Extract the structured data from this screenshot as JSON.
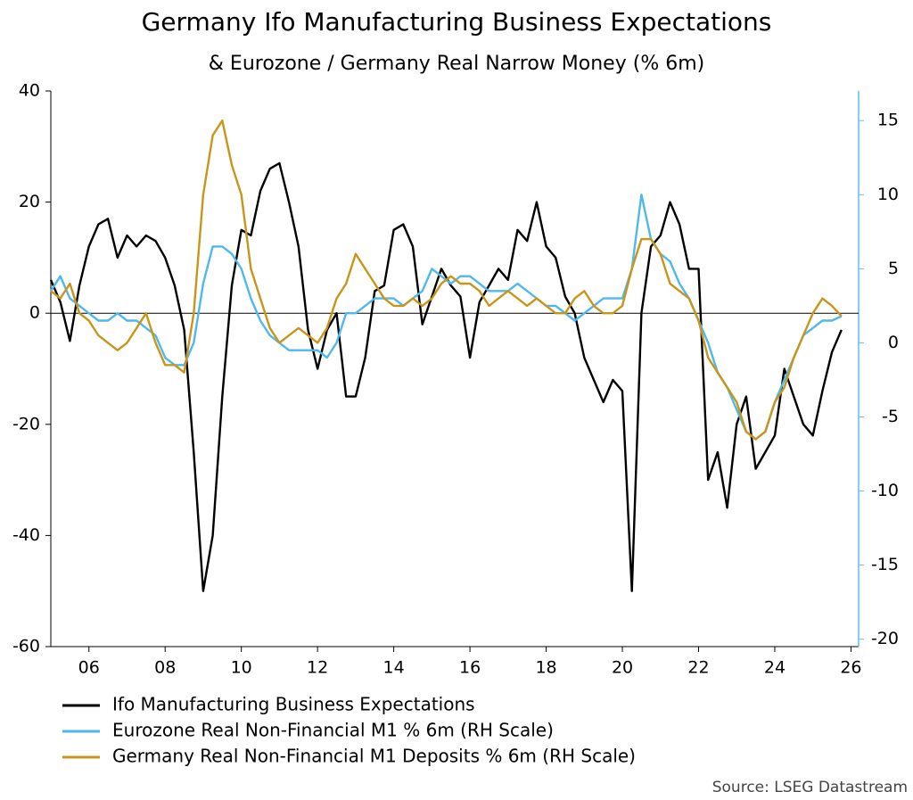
{
  "chart_data": {
    "type": "line",
    "title": "Germany Ifo Manufacturing Business Expectations",
    "subtitle": "& Eurozone / Germany Real Narrow Money (% 6m)",
    "source": "Source: LSEG Datastream",
    "x": [
      2005,
      2005.25,
      2005.5,
      2005.75,
      2006,
      2006.25,
      2006.5,
      2006.75,
      2007,
      2007.25,
      2007.5,
      2007.75,
      2008,
      2008.25,
      2008.5,
      2008.75,
      2009,
      2009.25,
      2009.5,
      2009.75,
      2010,
      2010.25,
      2010.5,
      2010.75,
      2011,
      2011.25,
      2011.5,
      2011.75,
      2012,
      2012.25,
      2012.5,
      2012.75,
      2013,
      2013.25,
      2013.5,
      2013.75,
      2014,
      2014.25,
      2014.5,
      2014.75,
      2015,
      2015.25,
      2015.5,
      2015.75,
      2016,
      2016.25,
      2016.5,
      2016.75,
      2017,
      2017.25,
      2017.5,
      2017.75,
      2018,
      2018.25,
      2018.5,
      2018.75,
      2019,
      2019.25,
      2019.5,
      2019.75,
      2020,
      2020.25,
      2020.5,
      2020.75,
      2021,
      2021.25,
      2021.5,
      2021.75,
      2022,
      2022.25,
      2022.5,
      2022.75,
      2023,
      2023.25,
      2023.5,
      2023.75,
      2024,
      2024.25,
      2024.5,
      2024.75,
      2025,
      2025.25,
      2025.5,
      2025.75
    ],
    "xlim": [
      2005,
      2026.2
    ],
    "xticks": [
      {
        "value": 2006,
        "label": "06"
      },
      {
        "value": 2008,
        "label": "08"
      },
      {
        "value": 2010,
        "label": "10"
      },
      {
        "value": 2012,
        "label": "12"
      },
      {
        "value": 2014,
        "label": "14"
      },
      {
        "value": 2016,
        "label": "16"
      },
      {
        "value": 2018,
        "label": "18"
      },
      {
        "value": 2020,
        "label": "20"
      },
      {
        "value": 2022,
        "label": "22"
      },
      {
        "value": 2024,
        "label": "24"
      },
      {
        "value": 2026,
        "label": "26"
      }
    ],
    "ylim": [
      -60,
      40
    ],
    "yticks": [
      -60,
      -40,
      -20,
      0,
      20,
      40
    ],
    "y2lim": [
      -20.5,
      17
    ],
    "y2ticks": [
      -20,
      -15,
      -10,
      -5,
      0,
      5,
      10,
      15
    ],
    "y2_axis_color": "#5bc0f0",
    "hline": 0,
    "series": [
      {
        "name": "Ifo Manufacturing Business Expectations",
        "color": "#000000",
        "values": [
          6,
          2,
          -5,
          5,
          12,
          16,
          17,
          10,
          14,
          12,
          14,
          13,
          10,
          5,
          -3,
          -25,
          -50,
          -40,
          -15,
          5,
          15,
          14,
          22,
          26,
          27,
          20,
          12,
          -3,
          -10,
          -3,
          0,
          -15,
          -15,
          -8,
          4,
          5,
          15,
          16,
          12,
          -2,
          3,
          8,
          5,
          3,
          -8,
          2,
          5,
          8,
          6,
          15,
          13,
          20,
          12,
          10,
          3,
          0,
          -8,
          -12,
          -16,
          -12,
          -14,
          -50,
          0,
          12,
          14,
          20,
          16,
          8,
          8,
          -30,
          -25,
          -35,
          -20,
          -15,
          -28,
          -25,
          -22,
          -10,
          -15,
          -20,
          -22,
          -14,
          -7,
          -3
        ]
      },
      {
        "name": "Eurozone Real Non-Financial M1 % 6m (RH Scale)",
        "color": "#4fb8ee",
        "axis": "y2",
        "values": [
          3.5,
          4.5,
          3,
          2.5,
          2,
          1.5,
          1.5,
          2,
          1.5,
          1.5,
          1,
          0.5,
          -1,
          -1.5,
          -1.5,
          0,
          4,
          6.5,
          6.5,
          6,
          5,
          3,
          1.5,
          0.5,
          0,
          -0.5,
          -0.5,
          -0.5,
          -0.5,
          -1,
          0,
          2,
          2,
          2.5,
          3,
          3,
          3,
          2.5,
          3,
          3.5,
          5,
          4.5,
          4,
          4.5,
          4.5,
          4,
          3.5,
          3.5,
          3.5,
          4,
          3.5,
          3,
          2.5,
          2.5,
          2,
          1.5,
          2,
          2.5,
          3,
          3,
          3,
          5,
          10,
          7,
          6,
          5.5,
          4,
          3,
          1.5,
          0,
          -2,
          -3,
          -4.5,
          -6,
          -6.5,
          -6,
          -4,
          -2.5,
          -1,
          0.5,
          1,
          1.5,
          1.5,
          1.8
        ]
      },
      {
        "name": "Germany Real Non-Financial M1 Deposits % 6m (RH Scale)",
        "color": "#c8951a",
        "axis": "y2",
        "values": [
          3.5,
          3,
          4,
          2,
          1.5,
          0.5,
          0,
          -0.5,
          0,
          1,
          2,
          0,
          -1.5,
          -1.5,
          -2,
          2,
          10,
          14,
          15,
          12,
          10,
          5,
          3,
          1,
          0,
          0.5,
          1,
          0.5,
          0,
          1,
          3,
          4,
          6,
          5,
          4,
          3,
          2.5,
          2.5,
          3,
          2.5,
          3,
          4,
          4.5,
          4,
          4,
          3.5,
          2.5,
          3,
          3.5,
          3,
          2.5,
          3,
          2.5,
          2,
          2,
          3,
          3.5,
          2.5,
          2,
          2,
          2.5,
          5,
          7,
          7,
          6,
          4,
          3.5,
          3,
          1.5,
          -1,
          -2,
          -3,
          -4,
          -6,
          -6.5,
          -6,
          -4,
          -3,
          -1,
          0.5,
          2,
          3,
          2.5,
          1.8
        ]
      }
    ]
  }
}
